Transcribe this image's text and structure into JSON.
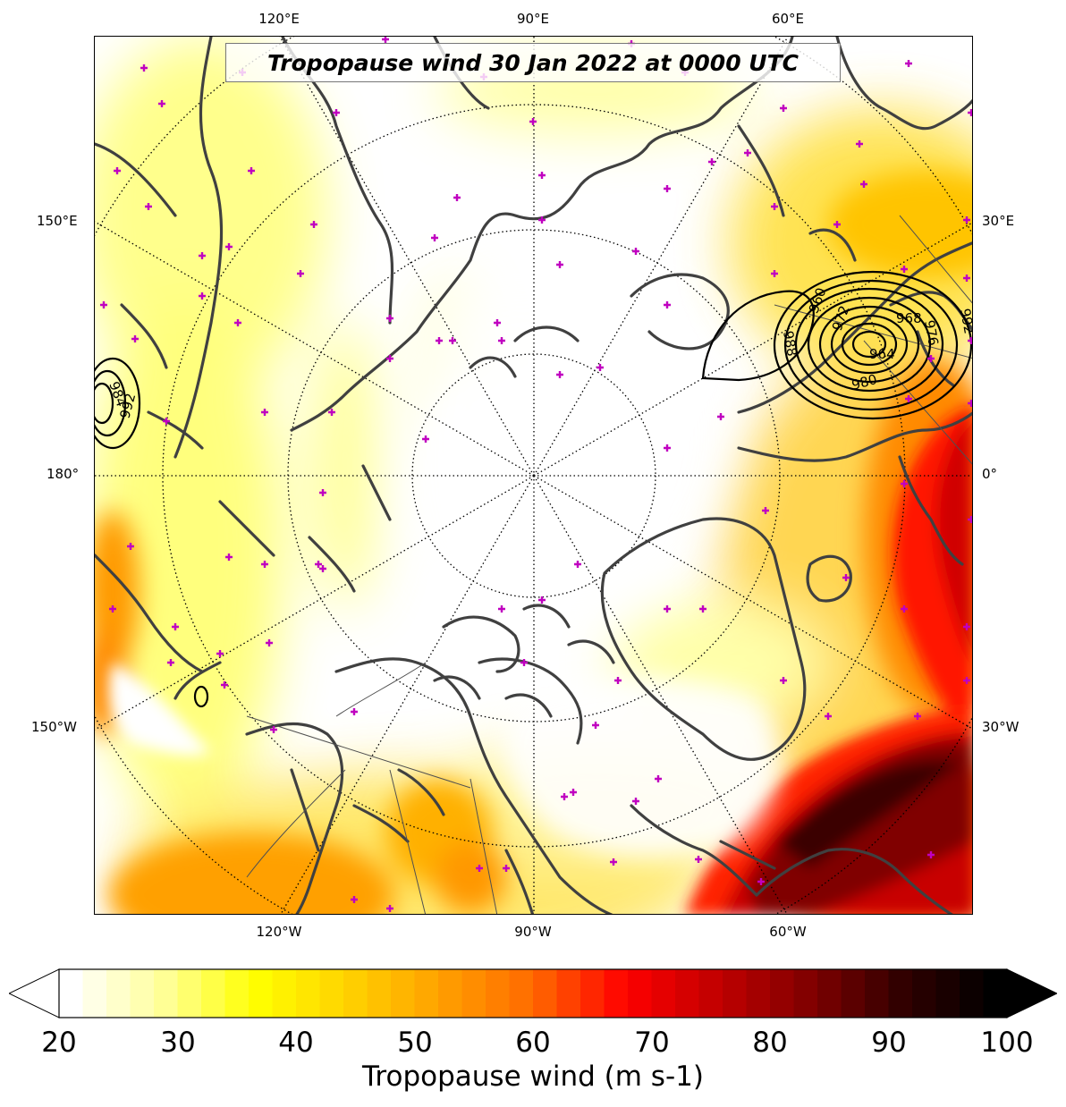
{
  "title": "Tropopause wind 30 Jan 2022 at 0000 UTC",
  "longitude_labels": {
    "top": [
      "120°E",
      "90°E",
      "60°E"
    ],
    "bottom": [
      "120°W",
      "90°W",
      "60°W"
    ],
    "left": [
      "150°E",
      "180°",
      "150°W"
    ],
    "right": [
      "30°E",
      "0°",
      "30°W"
    ]
  },
  "pressure_contour_labels": [
    "984",
    "992",
    "988",
    "980",
    "976",
    "968",
    "972",
    "964",
    "960",
    "992"
  ],
  "colorbar": {
    "min": 20,
    "max": 100,
    "ticks": [
      "20",
      "30",
      "40",
      "50",
      "60",
      "70",
      "80",
      "90",
      "100"
    ],
    "label": "Tropopause wind (m s-1)",
    "colormap": [
      "#ffffff",
      "#ffff99",
      "#ffff00",
      "#ffd200",
      "#ffa000",
      "#ff6a00",
      "#ff0000",
      "#c00000",
      "#800000",
      "#300000",
      "#000000"
    ],
    "extend": "both"
  },
  "colors": {
    "coastline": "#404040",
    "marker": "#c000c0",
    "graticule": "#000000",
    "contour": "#000000"
  }
}
